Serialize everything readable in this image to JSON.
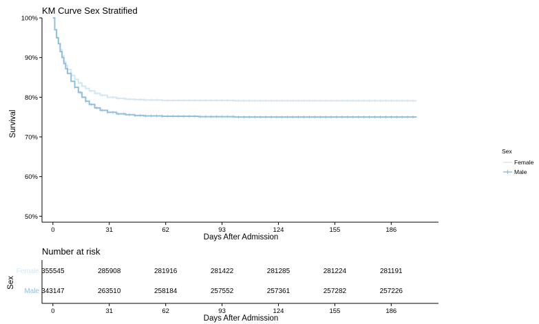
{
  "chart_data": [
    {
      "type": "line",
      "title": "KM Curve Sex Stratified",
      "xlabel": "Days After Admission",
      "ylabel": "Survival",
      "xlim": [
        -6,
        212
      ],
      "ylim": [
        0.485,
        1.0
      ],
      "x_ticks": [
        0,
        31,
        62,
        93,
        124,
        155,
        186
      ],
      "y_ticks": [
        0.5,
        0.6,
        0.7,
        0.8,
        0.9,
        1.0
      ],
      "y_tick_labels": [
        "50%",
        "60%",
        "70%",
        "80%",
        "90%",
        "100%"
      ],
      "grid": false,
      "legend": {
        "title": "Sex",
        "placement": "right"
      },
      "series": [
        {
          "name": "Female",
          "color": "#d4e6f3",
          "x": [
            0,
            1,
            2,
            3,
            4,
            5,
            6,
            7,
            8,
            10,
            12,
            14,
            16,
            18,
            20,
            23,
            26,
            30,
            35,
            40,
            45,
            50,
            60,
            80,
            100,
            130,
            160,
            190,
            200
          ],
          "y": [
            1.0,
            0.97,
            0.95,
            0.935,
            0.92,
            0.905,
            0.89,
            0.88,
            0.87,
            0.855,
            0.845,
            0.836,
            0.828,
            0.822,
            0.816,
            0.81,
            0.805,
            0.8,
            0.797,
            0.795,
            0.794,
            0.793,
            0.792,
            0.792,
            0.791,
            0.791,
            0.791,
            0.791,
            0.791
          ]
        },
        {
          "name": "Male",
          "color": "#8fbfdd",
          "x": [
            0,
            1,
            2,
            3,
            4,
            5,
            6,
            7,
            8,
            10,
            12,
            14,
            16,
            18,
            20,
            23,
            26,
            30,
            35,
            40,
            45,
            50,
            60,
            80,
            100,
            130,
            160,
            190,
            200
          ],
          "y": [
            1.0,
            0.97,
            0.95,
            0.935,
            0.915,
            0.9,
            0.885,
            0.872,
            0.86,
            0.84,
            0.825,
            0.812,
            0.8,
            0.79,
            0.782,
            0.773,
            0.767,
            0.762,
            0.758,
            0.756,
            0.754,
            0.753,
            0.752,
            0.751,
            0.75,
            0.75,
            0.75,
            0.75,
            0.75
          ]
        }
      ]
    },
    {
      "type": "table",
      "title": "Number at risk",
      "xlabel": "Days After Admission",
      "ylabel": "Sex",
      "x_ticks": [
        0,
        31,
        62,
        93,
        124,
        155,
        186
      ],
      "rows": [
        {
          "name": "Female",
          "color": "#d4e6f3",
          "values": [
            "355545",
            "285908",
            "281916",
            "281422",
            "281285",
            "281224",
            "281191"
          ]
        },
        {
          "name": "Male",
          "color": "#8fbfdd",
          "values": [
            "343147",
            "263510",
            "258184",
            "257552",
            "257361",
            "257282",
            "257226"
          ]
        }
      ]
    }
  ]
}
